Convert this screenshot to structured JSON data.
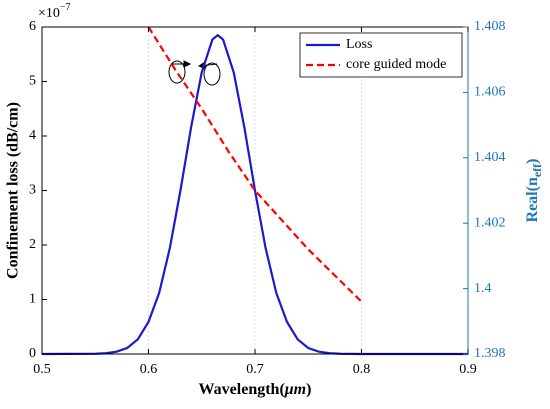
{
  "chart_data": {
    "type": "line",
    "xlabel_parts": [
      "Wavelength(",
      "μm",
      ")"
    ],
    "ylabel": "Confinement loss (dB/cm)",
    "y_multiplier_base": "×10",
    "y_multiplier_exponent": "−7",
    "y2label_parts": [
      "Real(n",
      "eff",
      ")"
    ],
    "xlim": [
      0.5,
      0.9
    ],
    "xticks": [
      0.5,
      0.6,
      0.7,
      0.8,
      0.9
    ],
    "ylim": [
      0,
      6
    ],
    "yticks": [
      0,
      1,
      2,
      3,
      4,
      5,
      6
    ],
    "y2lim": [
      1.398,
      1.408
    ],
    "y2ticks": [
      1.398,
      1.4,
      1.402,
      1.404,
      1.406,
      1.408
    ],
    "y2color": "#1f77b4",
    "legend": "upper right",
    "series": [
      {
        "name": "Loss",
        "color": "#1a1acc",
        "dash": false,
        "x": [
          0.5,
          0.55,
          0.56,
          0.57,
          0.58,
          0.59,
          0.6,
          0.61,
          0.62,
          0.63,
          0.64,
          0.65,
          0.66,
          0.665,
          0.67,
          0.68,
          0.69,
          0.7,
          0.71,
          0.72,
          0.73,
          0.74,
          0.75,
          0.76,
          0.77,
          0.78,
          0.8,
          0.9
        ],
        "values": [
          0,
          0.004,
          0.014,
          0.043,
          0.11,
          0.27,
          0.59,
          1.12,
          1.94,
          3.0,
          4.16,
          5.17,
          5.77,
          5.85,
          5.77,
          5.17,
          4.16,
          3.0,
          1.94,
          1.12,
          0.59,
          0.27,
          0.11,
          0.043,
          0.014,
          0.004,
          0,
          0
        ]
      },
      {
        "name": "core guided mode",
        "color": "#ff0000",
        "dash": true,
        "axis": "y2",
        "x": [
          0.6,
          0.625,
          0.65,
          0.675,
          0.7,
          0.725,
          0.75,
          0.775,
          0.8
        ],
        "values": [
          1.408,
          1.4067,
          1.4055,
          1.4042,
          1.403,
          1.4021,
          1.4012,
          1.4004,
          1.3996
        ]
      }
    ]
  }
}
